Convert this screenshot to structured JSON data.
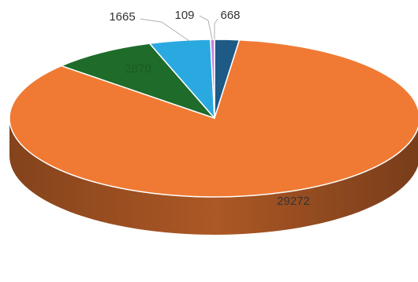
{
  "chart_data": {
    "type": "pie",
    "style": "3d",
    "title": "",
    "slices": [
      {
        "value": 668,
        "label": "668",
        "color": "#1d5a86"
      },
      {
        "value": 29272,
        "label": "29272",
        "color": "#f07a33"
      },
      {
        "value": 2870,
        "label": "2870",
        "color": "#1f6b2a"
      },
      {
        "value": 1665,
        "label": "1665",
        "color": "#2aa9e0"
      },
      {
        "value": 109,
        "label": "109",
        "color": "#c77ee3"
      }
    ],
    "colors": {
      "background": "#ffffff",
      "outline": "#ffffff",
      "label_text": "#333333",
      "leader_line": "#b0b0b0"
    }
  }
}
